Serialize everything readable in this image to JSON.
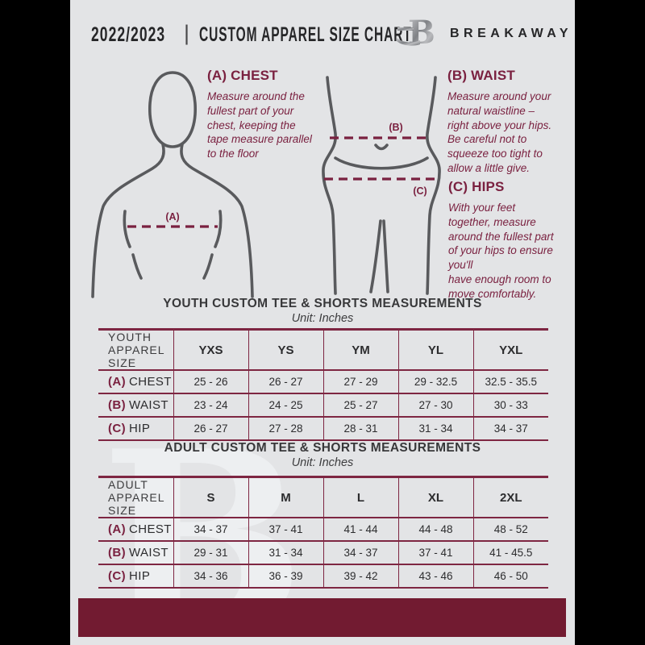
{
  "header": {
    "year": "2022/2023",
    "divider": "|",
    "title": "CUSTOM APPAREL SIZE CHART",
    "brand": "BREAKAWAY",
    "logo_letter": "B"
  },
  "instructions": [
    {
      "heading": "(A) CHEST",
      "body": "Measure around the\nfullest part of your\nchest, keeping the\ntape measure parallel\nto the floor"
    },
    {
      "heading": "(B) WAIST",
      "body": "Measure around your\nnatural waistline –\nright above your hips.\nBe careful not to\nsqueeze too tight to\nallow a little give."
    },
    {
      "heading": "(C) HIPS",
      "body": "With your feet\ntogether, measure\naround the fullest part\nof your hips to ensure\nyou'll\nhave enough room to\nmove comfortably."
    }
  ],
  "figure_labels": {
    "chest": "(A)",
    "waist": "(B)",
    "hips": "(C)"
  },
  "tables": [
    {
      "title": "YOUTH CUSTOM TEE & SHORTS MEASUREMENTS",
      "unit": "Unit: Inches",
      "size_header": "YOUTH APPAREL SIZE",
      "sizes": [
        "YXS",
        "YS",
        "YM",
        "YL",
        "YXL"
      ],
      "rows": [
        {
          "prefix": "(A)",
          "label": "CHEST",
          "values": [
            "25 - 26",
            "26 - 27",
            "27 - 29",
            "29 - 32.5",
            "32.5 - 35.5"
          ]
        },
        {
          "prefix": "(B)",
          "label": "WAIST",
          "values": [
            "23 - 24",
            "24 - 25",
            "25 - 27",
            "27 - 30",
            "30 - 33"
          ]
        },
        {
          "prefix": "(C)",
          "label": "HIP",
          "values": [
            "26 - 27",
            "27 - 28",
            "28 - 31",
            "31 - 34",
            "34 - 37"
          ]
        }
      ]
    },
    {
      "title": "ADULT CUSTOM TEE & SHORTS MEASUREMENTS",
      "unit": "Unit: Inches",
      "size_header": "ADULT APPAREL SIZE",
      "sizes": [
        "S",
        "M",
        "L",
        "XL",
        "2XL"
      ],
      "rows": [
        {
          "prefix": "(A)",
          "label": "CHEST",
          "values": [
            "34 - 37",
            "37 - 41",
            "41 - 44",
            "44 - 48",
            "48 - 52"
          ]
        },
        {
          "prefix": "(B)",
          "label": "WAIST",
          "values": [
            "29 - 31",
            "31 - 34",
            "34 - 37",
            "37 - 41",
            "41 - 45.5"
          ]
        },
        {
          "prefix": "(C)",
          "label": "HIP",
          "values": [
            "34 - 36",
            "36 - 39",
            "39 - 42",
            "43 - 46",
            "46 - 50"
          ]
        }
      ]
    }
  ],
  "watermark": "B",
  "colors": {
    "maroon": "#721b31",
    "accent_text": "#7a2140",
    "table_border": "#7e2642",
    "page_bg": "#e3e4e6",
    "figure_outline": "#595a5d",
    "text_dark": "#2c2c2e",
    "side_bars": "#000000"
  }
}
